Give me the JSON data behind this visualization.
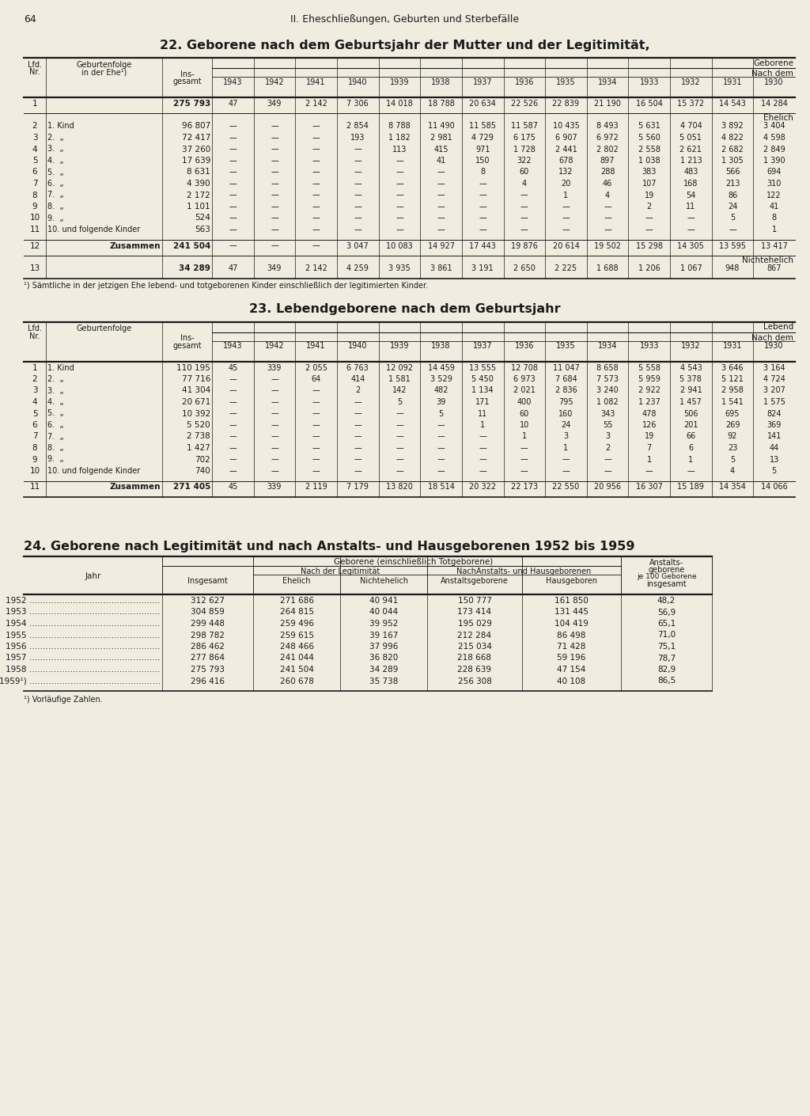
{
  "page_num": "64",
  "page_header": "II. Eheschließungen, Geburten und Sterbefälle",
  "bg_color": "#f0ece0",
  "text_color": "#1a1a1a",
  "table22_title": "22. Geborene nach dem Geburtsjahr der Mutter und der Legitimität,",
  "table22_col_header1": "Geborene",
  "table22_col_header2": "Nach dem",
  "table22_years": [
    "1943",
    "1942",
    "1941",
    "1940",
    "1939",
    "1938",
    "1937",
    "1936",
    "1935",
    "1934",
    "1933",
    "1932",
    "1931",
    "1930"
  ],
  "table22_row1": [
    "1",
    "",
    "275 793",
    "47",
    "349",
    "2 142",
    "7 306",
    "14 018",
    "18 788",
    "20 634",
    "22 526",
    "22 839",
    "21 190",
    "16 504",
    "15 372",
    "14 543",
    "14 284"
  ],
  "table22_ehelich_label": "Ehelich",
  "table22_rows_ehelich": [
    [
      "2",
      "1. Kind            ",
      "96 807",
      "—",
      "—",
      "—",
      "2 854",
      "8 788",
      "11 490",
      "11 585",
      "11 587",
      "10 435",
      "8 493",
      "5 631",
      "4 704",
      "3 892",
      "3 404"
    ],
    [
      "3",
      "2.  „             ",
      "72 417",
      "—",
      "—",
      "—",
      "193",
      "1 182",
      "2 981",
      "4 729",
      "6 175",
      "6 907",
      "6 972",
      "5 560",
      "5 051",
      "4 822",
      "4 598"
    ],
    [
      "4",
      "3.  „             ",
      "37 260",
      "—",
      "—",
      "—",
      "—",
      "113",
      "415",
      "971",
      "1 728",
      "2 441",
      "2 802",
      "2 558",
      "2 621",
      "2 682",
      "2 849"
    ],
    [
      "5",
      "4.  „             ",
      "17 639",
      "—",
      "—",
      "—",
      "—",
      "—",
      "41",
      "150",
      "322",
      "678",
      "897",
      "1 038",
      "1 213",
      "1 305",
      "1 390"
    ],
    [
      "6",
      "5.  „             ",
      "8 631",
      "—",
      "—",
      "—",
      "—",
      "—",
      "—",
      "8",
      "60",
      "132",
      "288",
      "383",
      "483",
      "566",
      "694"
    ],
    [
      "7",
      "6.  „             ",
      "4 390",
      "—",
      "—",
      "—",
      "—",
      "—",
      "—",
      "—",
      "4",
      "20",
      "46",
      "107",
      "168",
      "213",
      "310"
    ],
    [
      "8",
      "7.  „             ",
      "2 172",
      "—",
      "—",
      "—",
      "—",
      "—",
      "—",
      "—",
      "—",
      "1",
      "4",
      "19",
      "54",
      "86",
      "122"
    ],
    [
      "9",
      "8.  „             ",
      "1 101",
      "—",
      "—",
      "—",
      "—",
      "—",
      "—",
      "—",
      "—",
      "—",
      "—",
      "2",
      "11",
      "24",
      "41"
    ],
    [
      "10",
      "9.  „             ",
      "524",
      "—",
      "—",
      "—",
      "—",
      "—",
      "—",
      "—",
      "—",
      "—",
      "—",
      "—",
      "—",
      "5",
      "8"
    ],
    [
      "11",
      "10. und folgende Kinder",
      "563",
      "—",
      "—",
      "—",
      "—",
      "—",
      "—",
      "—",
      "—",
      "—",
      "—",
      "—",
      "—",
      "—",
      "1"
    ]
  ],
  "table22_row12": [
    "12",
    "Zusammen",
    "241 504",
    "—",
    "—",
    "—",
    "3 047",
    "10 083",
    "14 927",
    "17 443",
    "19 876",
    "20 614",
    "19 502",
    "15 298",
    "14 305",
    "13 595",
    "13 417"
  ],
  "table22_nichtehelich_label": "Nichtehelich",
  "table22_row13": [
    "13",
    "",
    "34 289",
    "47",
    "349",
    "2 142",
    "4 259",
    "3 935",
    "3 861",
    "3 191",
    "2 650",
    "2 225",
    "1 688",
    "1 206",
    "1 067",
    "948",
    "867"
  ],
  "table22_footnote": "¹) Sämtliche in der jetzigen Ehe lebend- und totgeborenen Kinder einschließlich der legitimierten Kinder.",
  "table23_title": "23. Lebendgeborene nach dem Geburtsjahr",
  "table23_col_header1": "Lebend",
  "table23_col_header2": "Nach dem",
  "table23_years": [
    "1943",
    "1942",
    "1941",
    "1940",
    "1939",
    "1938",
    "1937",
    "1936",
    "1935",
    "1934",
    "1933",
    "1932",
    "1931",
    "1930"
  ],
  "table23_rows": [
    [
      "1",
      "1. Kind            ",
      "110 195",
      "45",
      "339",
      "2 055",
      "6 763",
      "12 092",
      "14 459",
      "13 555",
      "12 708",
      "11 047",
      "8 658",
      "5 558",
      "4 543",
      "3 646",
      "3 164"
    ],
    [
      "2",
      "2.  „             ",
      "77 716",
      "—",
      "—",
      "64",
      "414",
      "1 581",
      "3 529",
      "5 450",
      "6 973",
      "7 684",
      "7 573",
      "5 959",
      "5 378",
      "5 121",
      "4 724"
    ],
    [
      "3",
      "3.  „             ",
      "41 304",
      "—",
      "—",
      "—",
      "2",
      "142",
      "482",
      "1 134",
      "2 021",
      "2 836",
      "3 240",
      "2 922",
      "2 941",
      "2 958",
      "3 207"
    ],
    [
      "4",
      "4.  „             ",
      "20 671",
      "—",
      "—",
      "—",
      "—",
      "5",
      "39",
      "171",
      "400",
      "795",
      "1 082",
      "1 237",
      "1 457",
      "1 541",
      "1 575"
    ],
    [
      "5",
      "5.  „             ",
      "10 392",
      "—",
      "—",
      "—",
      "—",
      "—",
      "5",
      "11",
      "60",
      "160",
      "343",
      "478",
      "506",
      "695",
      "824"
    ],
    [
      "6",
      "6.  „             ",
      "5 520",
      "—",
      "—",
      "—",
      "—",
      "—",
      "—",
      "1",
      "10",
      "24",
      "55",
      "126",
      "201",
      "269",
      "369"
    ],
    [
      "7",
      "7.  „             ",
      "2 738",
      "—",
      "—",
      "—",
      "—",
      "—",
      "—",
      "—",
      "1",
      "3",
      "3",
      "19",
      "66",
      "92",
      "141"
    ],
    [
      "8",
      "8.  „             ",
      "1 427",
      "—",
      "—",
      "—",
      "—",
      "—",
      "—",
      "—",
      "—",
      "1",
      "2",
      "7",
      "6",
      "23",
      "44"
    ],
    [
      "9",
      "9.  „             ",
      "702",
      "—",
      "—",
      "—",
      "—",
      "—",
      "—",
      "—",
      "—",
      "—",
      "—",
      "1",
      "1",
      "5",
      "13"
    ],
    [
      "10",
      "10. und folgende Kinder",
      "740",
      "—",
      "—",
      "—",
      "—",
      "—",
      "—",
      "—",
      "—",
      "—",
      "—",
      "—",
      "—",
      "4",
      "5"
    ]
  ],
  "table23_row11": [
    "11",
    "Zusammen",
    "271 405",
    "45",
    "339",
    "2 119",
    "7 179",
    "13 820",
    "18 514",
    "20 322",
    "22 173",
    "22 550",
    "20 956",
    "16 307",
    "15 189",
    "14 354",
    "14 066"
  ],
  "table24_title": "24. Geborene nach Legitimität und nach Anstalts- und Hausgeborenen 1952 bis 1959",
  "table24_header_geborene": "Geborene (einschließlich Totgeborene)",
  "table24_header_legitimitaet": "Nach der Legitimität",
  "table24_header_anstalts_haus": "NachAnstalts- und Hausgeborenen",
  "table24_header_jahr": "Jahr",
  "table24_header_insgesamt": "Insgesamt",
  "table24_header_ehelich": "Ehelich",
  "table24_header_nichtehelich": "Nichtehelich",
  "table24_header_anstaltsgeboren": "Anstaltsgeborene",
  "table24_header_hausgeboren": "Hausgeboren",
  "table24_header_je100_line1": "Anstalts-",
  "table24_header_je100_line2": "geborene",
  "table24_header_je100_line3": "je 100 Geborene",
  "table24_header_je100_line4": "insgesamt",
  "table24_rows": [
    [
      "1952 …………………………………………",
      "312 627",
      "271 686",
      "40 941",
      "150 777",
      "161 850",
      "48,2"
    ],
    [
      "1953 …………………………………………",
      "304 859",
      "264 815",
      "40 044",
      "173 414",
      "131 445",
      "56,9"
    ],
    [
      "1954 …………………………………………",
      "299 448",
      "259 496",
      "39 952",
      "195 029",
      "104 419",
      "65,1"
    ],
    [
      "1955 …………………………………………",
      "298 782",
      "259 615",
      "39 167",
      "212 284",
      "86 498",
      "71,0"
    ],
    [
      "1956 …………………………………………",
      "286 462",
      "248 466",
      "37 996",
      "215 034",
      "71 428",
      "75,1"
    ],
    [
      "1957 …………………………………………",
      "277 864",
      "241 044",
      "36 820",
      "218 668",
      "59 196",
      "78,7"
    ],
    [
      "1958 …………………………………………",
      "275 793",
      "241 504",
      "34 289",
      "228 639",
      "47 154",
      "82,9"
    ],
    [
      "1959¹) …………………………………………",
      "296 416",
      "260 678",
      "35 738",
      "256 308",
      "40 108",
      "86,5"
    ]
  ],
  "table24_footnote": "¹) Vorläufige Zahlen."
}
